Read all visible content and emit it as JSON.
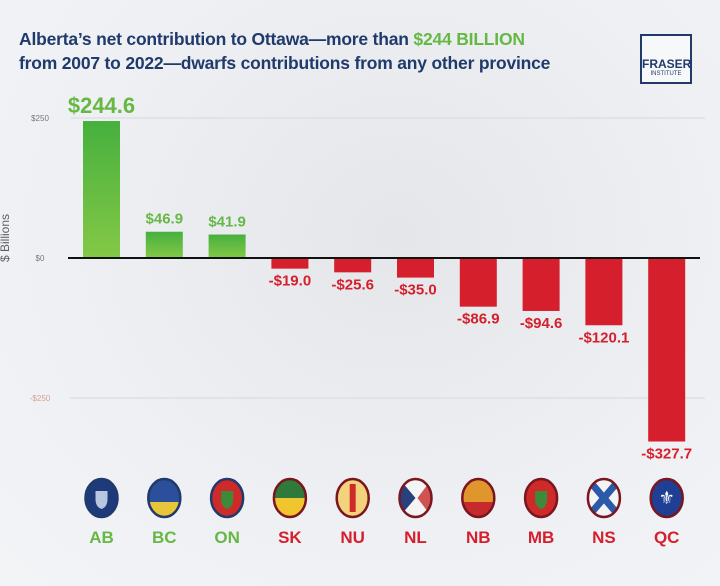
{
  "title": {
    "part1": "Alberta’s net contribution to Ottawa—more than ",
    "highlight": "$244 BILLION",
    "part2": "from 2007 to 2022—dwarfs contributions from any other province"
  },
  "logo": {
    "line1": "FRASER",
    "line2": "INSTITUTE"
  },
  "colors": {
    "positive": "#66b845",
    "negative": "#d61f2c",
    "title": "#1f3a6b"
  },
  "chart_data": {
    "type": "bar",
    "title": "Alberta’s net contribution to Ottawa—more than $244 BILLION from 2007 to 2022—dwarfs contributions from any other province",
    "xlabel": "",
    "ylabel": "$ Billions",
    "ylim": [
      -250,
      250
    ],
    "yticks": [
      250,
      0,
      -250
    ],
    "ytick_labels": [
      "$250",
      "$0",
      "-$250"
    ],
    "grid": true,
    "categories": [
      "AB",
      "BC",
      "ON",
      "SK",
      "NU",
      "NL",
      "NB",
      "MB",
      "NS",
      "QC"
    ],
    "values": [
      244.6,
      46.9,
      41.9,
      -19.0,
      -25.6,
      -35.0,
      -86.9,
      -94.6,
      -120.1,
      -327.7
    ],
    "data_labels": [
      "$244.6",
      "$46.9",
      "$41.9",
      "-$19.0",
      "-$25.6",
      "-$35.0",
      "-$86.9",
      "-$94.6",
      "-$120.1",
      "-$327.7"
    ]
  },
  "flags": [
    {
      "code": "AB",
      "icon": "alberta-flag-icon",
      "bg": "#1d3a7a",
      "accent": "#e8c34a"
    },
    {
      "code": "BC",
      "icon": "british-columbia-flag-icon",
      "bg": "#2b4f9a",
      "accent": "#e9c53a"
    },
    {
      "code": "ON",
      "icon": "ontario-flag-icon",
      "bg": "#cf2a2a",
      "accent": "#3d8a3a"
    },
    {
      "code": "SK",
      "icon": "saskatchewan-flag-icon",
      "bg": "#2f7a3a",
      "accent": "#f1c52e"
    },
    {
      "code": "NU",
      "icon": "nunavut-flag-icon",
      "bg": "#f2d27a",
      "accent": "#cf2a2a"
    },
    {
      "code": "NL",
      "icon": "newfoundland-flag-icon",
      "bg": "#f4f4f4",
      "accent": "#27407e"
    },
    {
      "code": "NB",
      "icon": "new-brunswick-flag-icon",
      "bg": "#e0962c",
      "accent": "#c62a2a"
    },
    {
      "code": "MB",
      "icon": "manitoba-flag-icon",
      "bg": "#cf2a2a",
      "accent": "#3d8a3a"
    },
    {
      "code": "NS",
      "icon": "nova-scotia-flag-icon",
      "bg": "#f4f4f4",
      "accent": "#2a5aa8"
    },
    {
      "code": "QC",
      "icon": "quebec-flag-icon",
      "bg": "#1e3f93",
      "accent": "#ffffff"
    }
  ]
}
